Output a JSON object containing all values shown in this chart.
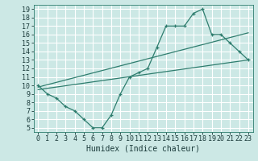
{
  "xlabel": "Humidex (Indice chaleur)",
  "ylabel": "",
  "bg_color": "#cce8e5",
  "grid_color": "#ffffff",
  "line_color": "#2e7d6e",
  "xlim": [
    -0.5,
    23.5
  ],
  "ylim": [
    4.5,
    19.5
  ],
  "xticks": [
    0,
    1,
    2,
    3,
    4,
    5,
    6,
    7,
    8,
    9,
    10,
    11,
    12,
    13,
    14,
    15,
    16,
    17,
    18,
    19,
    20,
    21,
    22,
    23
  ],
  "yticks": [
    5,
    6,
    7,
    8,
    9,
    10,
    11,
    12,
    13,
    14,
    15,
    16,
    17,
    18,
    19
  ],
  "line1_x": [
    0,
    1,
    2,
    3,
    4,
    5,
    6,
    7,
    8,
    9,
    10,
    11,
    12,
    13,
    14,
    15,
    16,
    17,
    18,
    19,
    20,
    21,
    22,
    23
  ],
  "line1_y": [
    10,
    9,
    8.5,
    7.5,
    7,
    6,
    5,
    5,
    6.5,
    9,
    11,
    11.5,
    12,
    14.5,
    17,
    17,
    17,
    18.5,
    19,
    16,
    16,
    15,
    14,
    13
  ],
  "line2_x": [
    0,
    23
  ],
  "line2_y": [
    9.5,
    13
  ],
  "line3_x": [
    0,
    23
  ],
  "line3_y": [
    9.8,
    16.2
  ],
  "xlabel_fontsize": 7,
  "tick_fontsize": 6
}
